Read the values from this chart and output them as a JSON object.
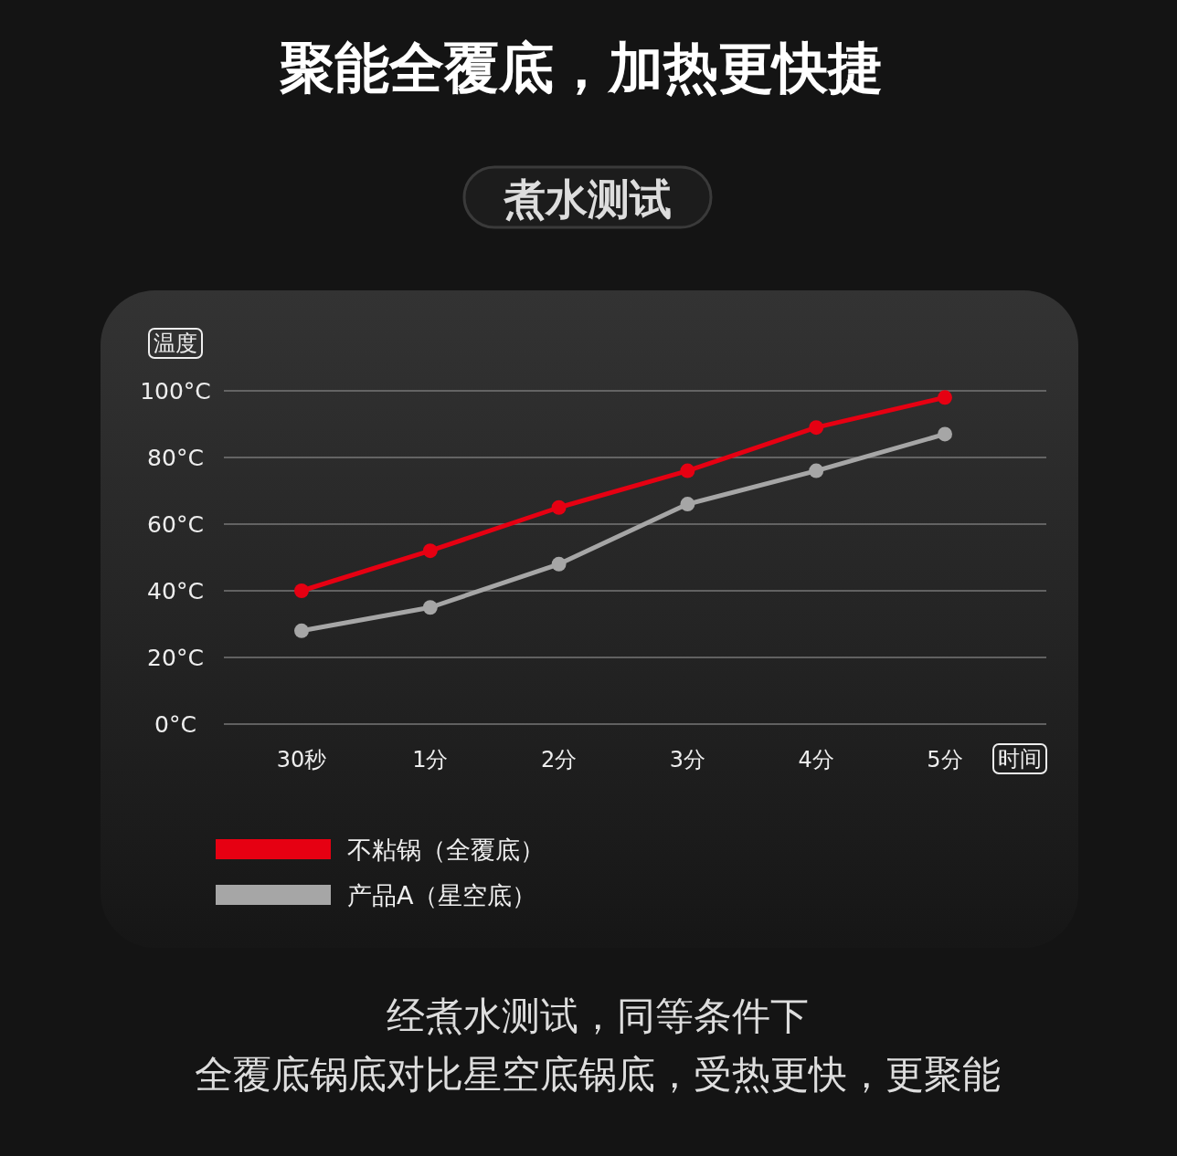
{
  "chart_data": {
    "type": "line",
    "title": "聚能全覆底，加热更快捷",
    "subtitle": "煮水测试",
    "ylabel": "温度",
    "xlabel": "时间",
    "categories": [
      "30秒",
      "1分",
      "2分",
      "3分",
      "4分",
      "5分"
    ],
    "series": [
      {
        "name": "不粘锅（全覆底）",
        "color": "#e60012",
        "values": [
          40,
          52,
          65,
          76,
          89,
          98
        ]
      },
      {
        "name": "产品A（星空底）",
        "color": "#a6a6a6",
        "values": [
          28,
          35,
          48,
          66,
          76,
          87
        ]
      }
    ],
    "ylim": [
      0,
      100
    ],
    "yticks": [
      {
        "value": 0,
        "label": "0°C"
      },
      {
        "value": 20,
        "label": "20°C"
      },
      {
        "value": 40,
        "label": "40°C"
      },
      {
        "value": 60,
        "label": "60°C"
      },
      {
        "value": 80,
        "label": "80°C"
      },
      {
        "value": 100,
        "label": "100°C"
      }
    ],
    "grid": "y",
    "legend": "bottom left",
    "marker": "circle",
    "line_style": "solid",
    "annotations": [
      "经煮水测试，同等条件下",
      "全覆底锅底对比星空底锅底，受热更快，更聚能"
    ]
  }
}
